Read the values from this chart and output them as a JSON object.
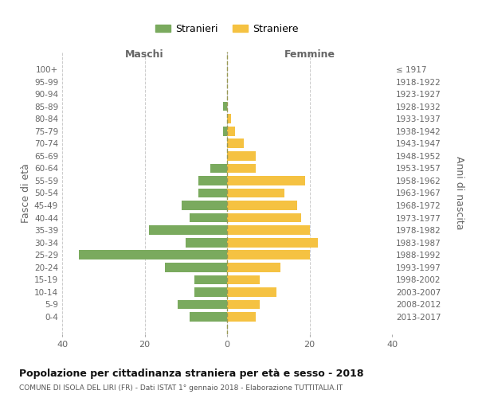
{
  "age_groups": [
    "100+",
    "95-99",
    "90-94",
    "85-89",
    "80-84",
    "75-79",
    "70-74",
    "65-69",
    "60-64",
    "55-59",
    "50-54",
    "45-49",
    "40-44",
    "35-39",
    "30-34",
    "25-29",
    "20-24",
    "15-19",
    "10-14",
    "5-9",
    "0-4"
  ],
  "birth_years": [
    "≤ 1917",
    "1918-1922",
    "1923-1927",
    "1928-1932",
    "1933-1937",
    "1938-1942",
    "1943-1947",
    "1948-1952",
    "1953-1957",
    "1958-1962",
    "1963-1967",
    "1968-1972",
    "1973-1977",
    "1978-1982",
    "1983-1987",
    "1988-1992",
    "1993-1997",
    "1998-2002",
    "2003-2007",
    "2008-2012",
    "2013-2017"
  ],
  "maschi": [
    0,
    0,
    0,
    1,
    0,
    1,
    0,
    0,
    4,
    7,
    7,
    11,
    9,
    19,
    10,
    36,
    15,
    8,
    8,
    12,
    9
  ],
  "femmine": [
    0,
    0,
    0,
    0,
    1,
    2,
    4,
    7,
    7,
    19,
    14,
    17,
    18,
    20,
    22,
    20,
    13,
    8,
    12,
    8,
    7
  ],
  "maschi_color": "#7aaa5e",
  "femmine_color": "#f5c242",
  "title": "Popolazione per cittadinanza straniera per età e sesso - 2018",
  "subtitle": "COMUNE DI ISOLA DEL LIRI (FR) - Dati ISTAT 1° gennaio 2018 - Elaborazione TUTTITALIA.IT",
  "xlabel_left": "Maschi",
  "xlabel_right": "Femmine",
  "ylabel_left": "Fasce di età",
  "ylabel_right": "Anni di nascita",
  "legend_maschi": "Stranieri",
  "legend_femmine": "Straniere",
  "xlim": 40,
  "background_color": "#ffffff",
  "grid_color": "#cccccc",
  "bar_height": 0.75
}
